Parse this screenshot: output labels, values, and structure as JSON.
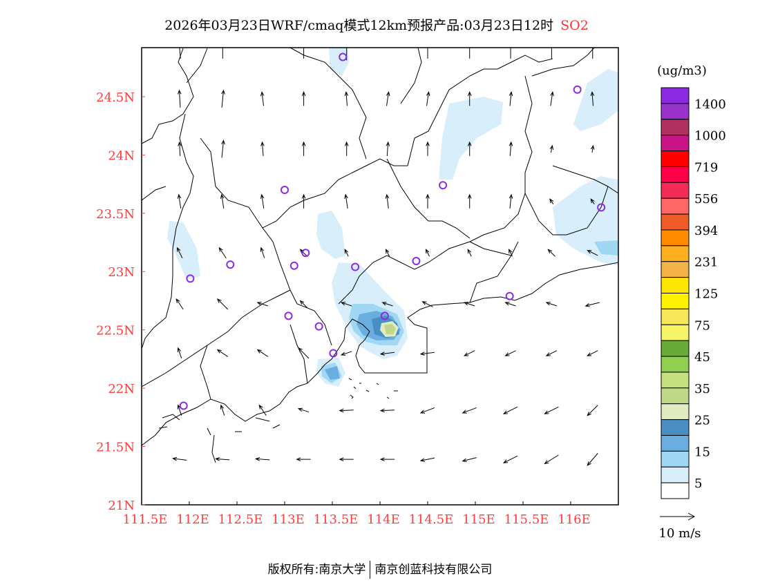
{
  "title": {
    "main": "2026年03月23日WRF/cmaq模式12km预报产品:03月23日12时",
    "species": "SO2"
  },
  "footer": {
    "prefix": "版权所有:南京大学",
    "company": "南京创蓝科技有限公司"
  },
  "axes": {
    "lon_ticks": [
      111.5,
      112,
      112.5,
      113,
      113.5,
      114,
      114.5,
      115,
      115.5,
      116
    ],
    "lon_labels": [
      "111.5E",
      "112E",
      "112.5E",
      "113E",
      "113.5E",
      "114E",
      "114.5E",
      "115E",
      "115.5E",
      "116E"
    ],
    "lat_ticks": [
      21,
      21.5,
      22,
      22.5,
      23,
      23.5,
      24,
      24.5
    ],
    "lat_labels": [
      "21N",
      "21.5N",
      "22N",
      "22.5N",
      "23N",
      "23.5N",
      "24N",
      "24.5N"
    ],
    "lon_range": [
      111.5,
      116.5
    ],
    "lat_range": [
      21,
      24.92
    ],
    "label_color": "#ff3b3b"
  },
  "colorbar": {
    "unit": "(ug/m3)",
    "colors": [
      "#8a2be2",
      "#9932cc",
      "#b03060",
      "#c71585",
      "#ff0000",
      "#ff0048",
      "#f52a55",
      "#ff6666",
      "#f05a28",
      "#ff8c00",
      "#ffb020",
      "#f5b44a",
      "#ffe600",
      "#fff200",
      "#f5e65a",
      "#f5f566",
      "#6aaa3a",
      "#90cf50",
      "#c5e080",
      "#c0d888",
      "#e0ecc0",
      "#4a8fc4",
      "#6aaee0",
      "#a0d8f4",
      "#d8eefa",
      "#ffffff"
    ],
    "labels": [
      "1400",
      "1000",
      "719",
      "556",
      "394",
      "231",
      "125",
      "75",
      "45",
      "35",
      "25",
      "15",
      "5"
    ]
  },
  "wind_ref": {
    "label": "10 m/s",
    "speed": 10
  },
  "stations": [
    [
      113.61,
      24.84
    ],
    [
      116.07,
      24.56
    ],
    [
      113.0,
      23.7
    ],
    [
      114.66,
      23.74
    ],
    [
      116.32,
      23.55
    ],
    [
      112.43,
      23.06
    ],
    [
      113.1,
      23.05
    ],
    [
      113.22,
      23.16
    ],
    [
      113.74,
      23.04
    ],
    [
      114.38,
      23.09
    ],
    [
      112.01,
      22.94
    ],
    [
      115.36,
      22.79
    ],
    [
      113.04,
      22.62
    ],
    [
      113.36,
      22.53
    ],
    [
      114.05,
      22.62
    ],
    [
      113.51,
      22.3
    ],
    [
      111.94,
      21.85
    ]
  ],
  "station_color": "#8a2be2",
  "wind": {
    "lons": [
      111.9,
      112.35,
      112.77,
      113.2,
      113.65,
      114.08,
      114.5,
      114.94,
      115.37,
      115.8,
      116.23
    ],
    "lats": [
      24.9,
      24.48,
      24.05,
      23.6,
      23.16,
      22.72,
      22.3,
      21.81,
      21.39
    ],
    "uv": [
      [
        [
          -0.4,
          5
        ],
        [
          0,
          5
        ],
        null,
        [
          0,
          5
        ],
        [
          0,
          6
        ],
        null,
        [
          0,
          5
        ],
        [
          0,
          5
        ],
        [
          0,
          5
        ],
        [
          0,
          5
        ],
        [
          0,
          5
        ]
      ],
      [
        [
          -0.3,
          5
        ],
        [
          0.5,
          5
        ],
        [
          -0.5,
          4
        ],
        [
          0,
          4
        ],
        [
          -0.3,
          4
        ],
        [
          0.6,
          4
        ],
        [
          0.6,
          4
        ],
        [
          0,
          4
        ],
        [
          0.4,
          4
        ],
        [
          0.6,
          4
        ],
        [
          -0.3,
          4
        ]
      ],
      [
        [
          -0.2,
          4
        ],
        [
          0.5,
          5
        ],
        [
          -0.3,
          4
        ],
        [
          0,
          4
        ],
        [
          0,
          4
        ],
        [
          0.3,
          4
        ],
        [
          0,
          4
        ],
        [
          0,
          4
        ],
        [
          0.3,
          4
        ],
        [
          0.4,
          2
        ],
        [
          0.3,
          2
        ]
      ],
      [
        [
          -0.6,
          4
        ],
        [
          -0.6,
          4
        ],
        [
          -0.6,
          4
        ],
        [
          0,
          4
        ],
        [
          -0.6,
          4
        ],
        [
          -0.5,
          4
        ],
        [
          0,
          4
        ],
        [
          0,
          4
        ],
        [
          0.4,
          4
        ],
        [
          -1,
          1.5
        ],
        [
          -1,
          1.5
        ]
      ],
      [
        [
          -1.5,
          3
        ],
        [
          -2,
          3
        ],
        [
          -1,
          3
        ],
        [
          -2,
          2
        ],
        [
          -1,
          2
        ],
        [
          -1,
          2
        ],
        [
          -1,
          2
        ],
        [
          -1,
          2
        ],
        [
          -1,
          2
        ],
        [
          -2,
          2
        ],
        [
          -3,
          1.5
        ]
      ],
      [
        [
          -2,
          3
        ],
        [
          -3,
          3
        ],
        [
          -3,
          1
        ],
        [
          -2,
          2
        ],
        [
          -3,
          1
        ],
        [
          -3,
          1
        ],
        [
          -3,
          1.5
        ],
        [
          -3,
          1
        ],
        [
          -3,
          1
        ],
        [
          -3,
          1
        ],
        [
          -4,
          -1
        ]
      ],
      [
        [
          -1,
          3
        ],
        [
          -3,
          2
        ],
        [
          -3,
          2
        ],
        [
          -3,
          3
        ],
        [
          -3,
          -1
        ],
        [
          -4,
          -0.5
        ],
        [
          -4,
          -0.5
        ],
        [
          -3,
          -1.5
        ],
        [
          -3,
          -1.5
        ],
        [
          -3,
          -1.5
        ],
        [
          -3,
          -1.5
        ]
      ],
      [
        [
          -1,
          3
        ],
        [
          -1,
          3
        ],
        [
          -2,
          3
        ],
        [
          -3,
          1
        ],
        [
          -4,
          -0.2
        ],
        [
          -4,
          -0.2
        ],
        [
          -4,
          -1.5
        ],
        [
          -4,
          -1.5
        ],
        [
          -4,
          -2
        ],
        [
          -4,
          -2
        ],
        [
          -3,
          -3
        ]
      ],
      [
        [
          -4,
          0.5
        ],
        [
          -4,
          0.3
        ],
        [
          -4,
          0.3
        ],
        [
          -4,
          0
        ],
        [
          -4,
          0
        ],
        [
          -4,
          0
        ],
        [
          -4,
          -0.8
        ],
        [
          -4,
          -1
        ],
        [
          -4,
          -2
        ],
        [
          -4,
          -2.5
        ],
        [
          -3,
          -3.5
        ]
      ]
    ]
  }
}
